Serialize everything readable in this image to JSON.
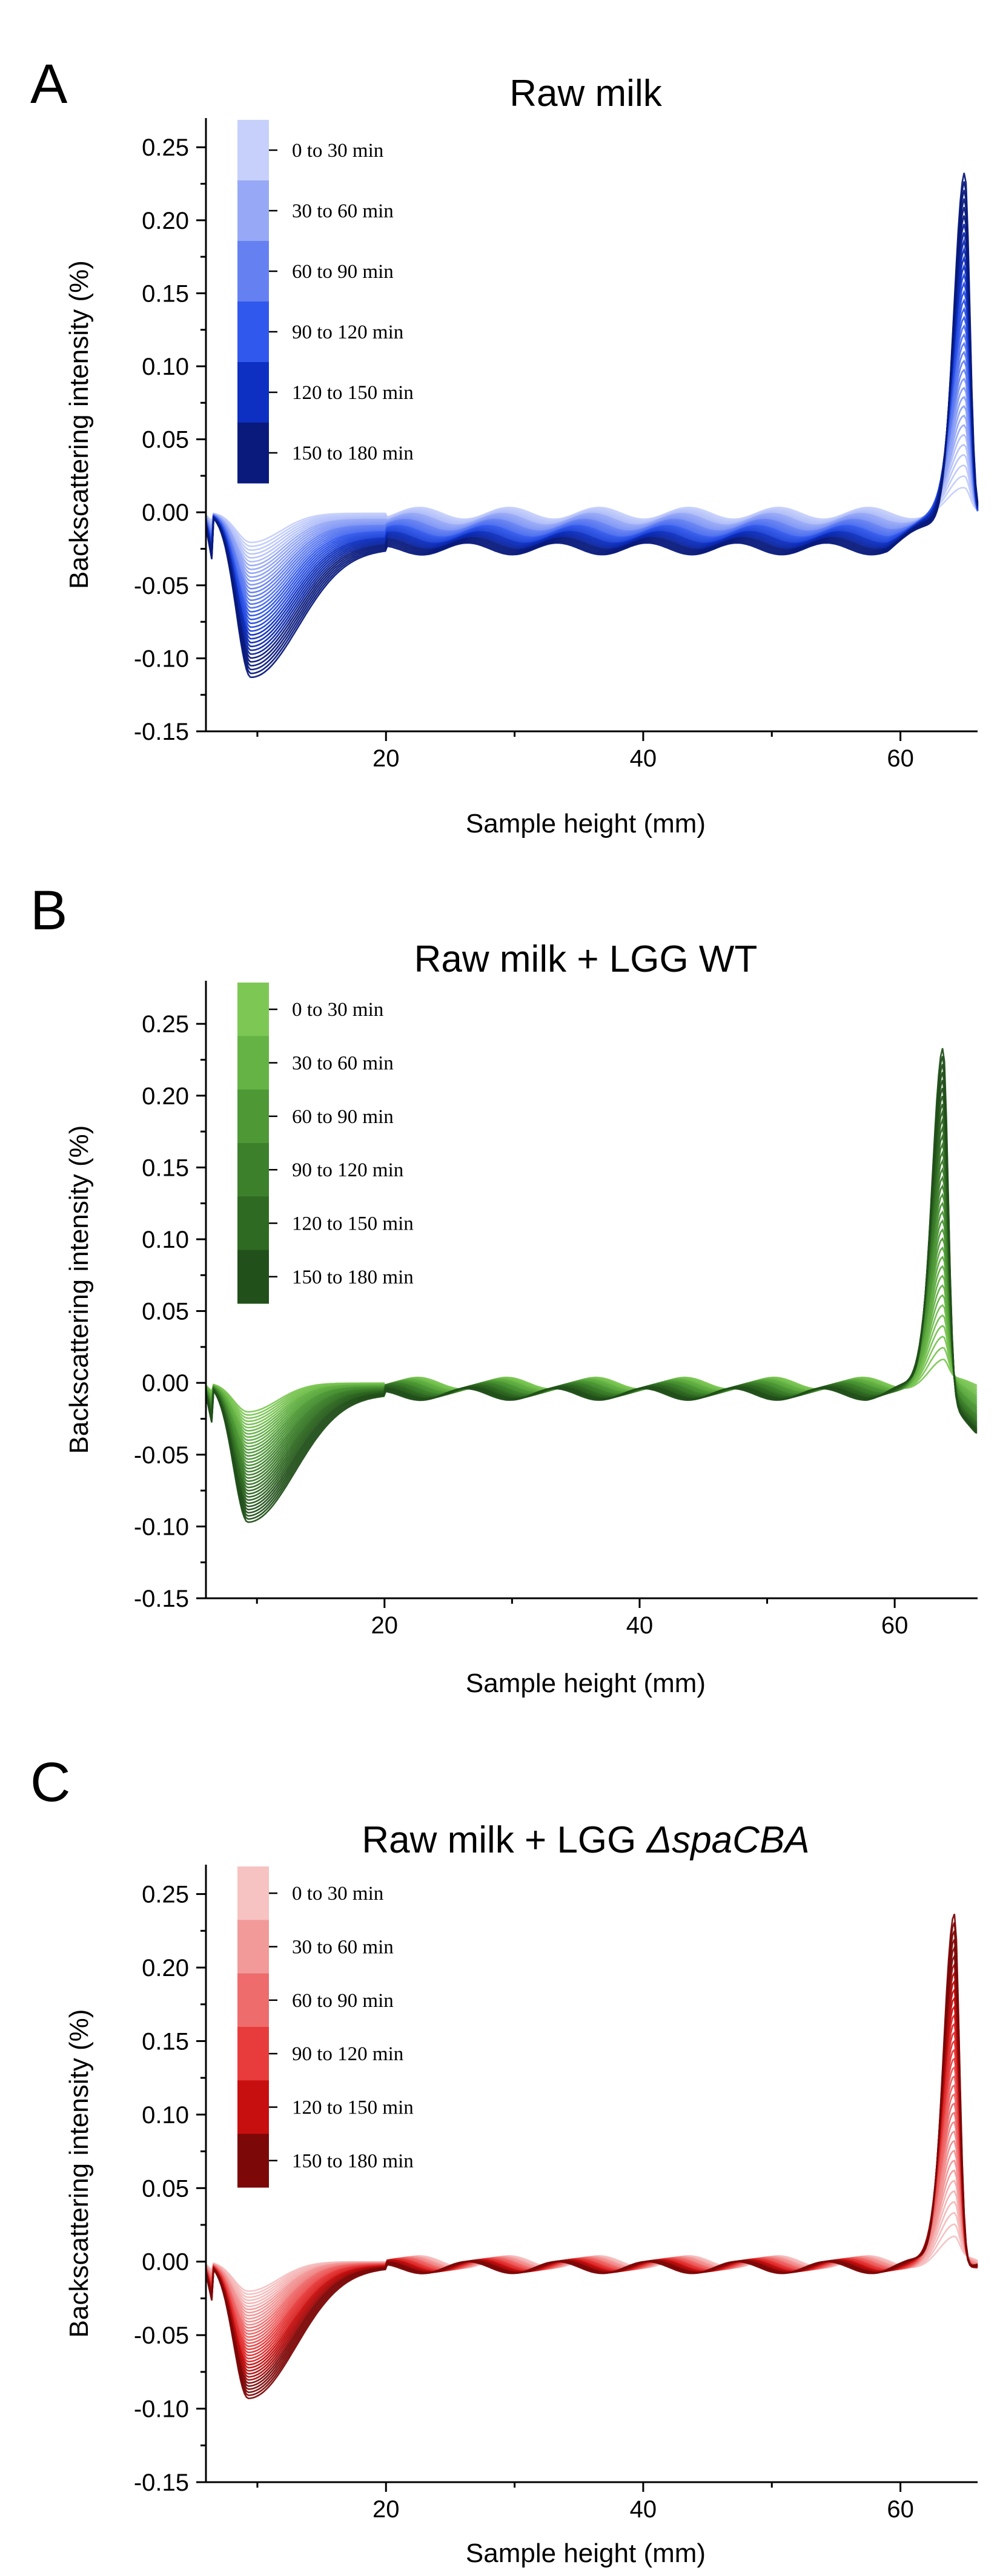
{
  "chart_data": [
    {
      "type": "line",
      "panel_label": "A",
      "title": "Raw milk",
      "title_parts": [
        {
          "text": "Raw milk",
          "italic": false
        }
      ],
      "xlabel": "Sample height (mm)",
      "ylabel": "Backscattering intensity (%)",
      "xlim": [
        6,
        66
      ],
      "ylim": [
        -0.15,
        0.27
      ],
      "xticks": [
        20,
        40,
        60
      ],
      "xtick_labels": [
        "20",
        "40",
        "60"
      ],
      "yticks": [
        -0.15,
        -0.1,
        -0.05,
        0.0,
        0.05,
        0.1,
        0.15,
        0.2,
        0.25
      ],
      "ytick_labels": [
        "-0.15",
        "-0.10",
        "-0.05",
        "0.00",
        "0.05",
        "0.10",
        "0.15",
        "0.20",
        "0.25"
      ],
      "legend": {
        "placement": "top-left",
        "entries": [
          "0 to 30 min",
          "30 to 60 min",
          "60 to 90 min",
          "90 to 120 min",
          "120 to 150 min",
          "150 to 180 min"
        ],
        "colors": [
          "#c6d0fb",
          "#97a9f6",
          "#6581f1",
          "#3158ec",
          "#0d2fc2",
          "#0a1a7c"
        ]
      },
      "profile": {
        "dip_position_mm": 9.5,
        "dip_min": -0.113,
        "plateau_final": -0.025,
        "peak_position_mm": 65.0,
        "peak_max": 0.237,
        "right_peak_drop": 0.0,
        "curves_per_group": 6
      }
    },
    {
      "type": "line",
      "panel_label": "B",
      "title": "Raw milk + LGG WT",
      "title_parts": [
        {
          "text": "Raw milk + LGG WT",
          "italic": false
        }
      ],
      "xlabel": "Sample height (mm)",
      "ylabel": "Backscattering intensity (%)",
      "xlim": [
        6,
        66.5
      ],
      "ylim": [
        -0.15,
        0.28
      ],
      "xticks": [
        20,
        40,
        60
      ],
      "xtick_labels": [
        "20",
        "40",
        "60"
      ],
      "yticks": [
        -0.15,
        -0.1,
        -0.05,
        0.0,
        0.05,
        0.1,
        0.15,
        0.2,
        0.25
      ],
      "ytick_labels": [
        "-0.15",
        "-0.10",
        "-0.05",
        "0.00",
        "0.05",
        "0.10",
        "0.15",
        "0.20",
        "0.25"
      ],
      "legend": {
        "placement": "top-left",
        "entries": [
          "0 to 30 min",
          "30 to 60 min",
          "60 to 90 min",
          "90 to 120 min",
          "120 to 150 min",
          "150 to 180 min"
        ],
        "colors": [
          "#7dc855",
          "#65b344",
          "#4e9936",
          "#3d802b",
          "#2f6a22",
          "#22501a"
        ]
      },
      "profile": {
        "dip_position_mm": 9.3,
        "dip_min": -0.097,
        "plateau_final": -0.008,
        "peak_position_mm": 63.8,
        "peak_max": 0.236,
        "right_peak_drop": -0.035,
        "curves_per_group": 6
      }
    },
    {
      "type": "line",
      "panel_label": "C",
      "title": "Raw milk + LGG ΔspaCBA",
      "title_parts": [
        {
          "text": "Raw milk + LGG ",
          "italic": false
        },
        {
          "text": "ΔspaCBA",
          "italic": true
        }
      ],
      "xlabel": "Sample height (mm)",
      "ylabel": "Backscattering intensity (%)",
      "xlim": [
        6,
        66
      ],
      "ylim": [
        -0.15,
        0.27
      ],
      "xticks": [
        20,
        40,
        60
      ],
      "xtick_labels": [
        "20",
        "40",
        "60"
      ],
      "yticks": [
        -0.15,
        -0.1,
        -0.05,
        0.0,
        0.05,
        0.1,
        0.15,
        0.2,
        0.25
      ],
      "ytick_labels": [
        "-0.15",
        "-0.10",
        "-0.05",
        "0.00",
        "0.05",
        "0.10",
        "0.15",
        "0.20",
        "0.25"
      ],
      "legend": {
        "placement": "top-left",
        "entries": [
          "0 to 30 min",
          "30 to 60 min",
          "60 to 90 min",
          "90 to 120 min",
          "120 to 150 min",
          "150 to 180 min"
        ],
        "colors": [
          "#f6c2c2",
          "#f29a9a",
          "#ee6c6c",
          "#e83c3c",
          "#c80f0f",
          "#7d0808"
        ]
      },
      "profile": {
        "dip_position_mm": 9.3,
        "dip_min": -0.093,
        "plateau_final": -0.004,
        "peak_position_mm": 64.2,
        "peak_max": 0.24,
        "right_peak_drop": 0.0,
        "curves_per_group": 6
      }
    }
  ]
}
